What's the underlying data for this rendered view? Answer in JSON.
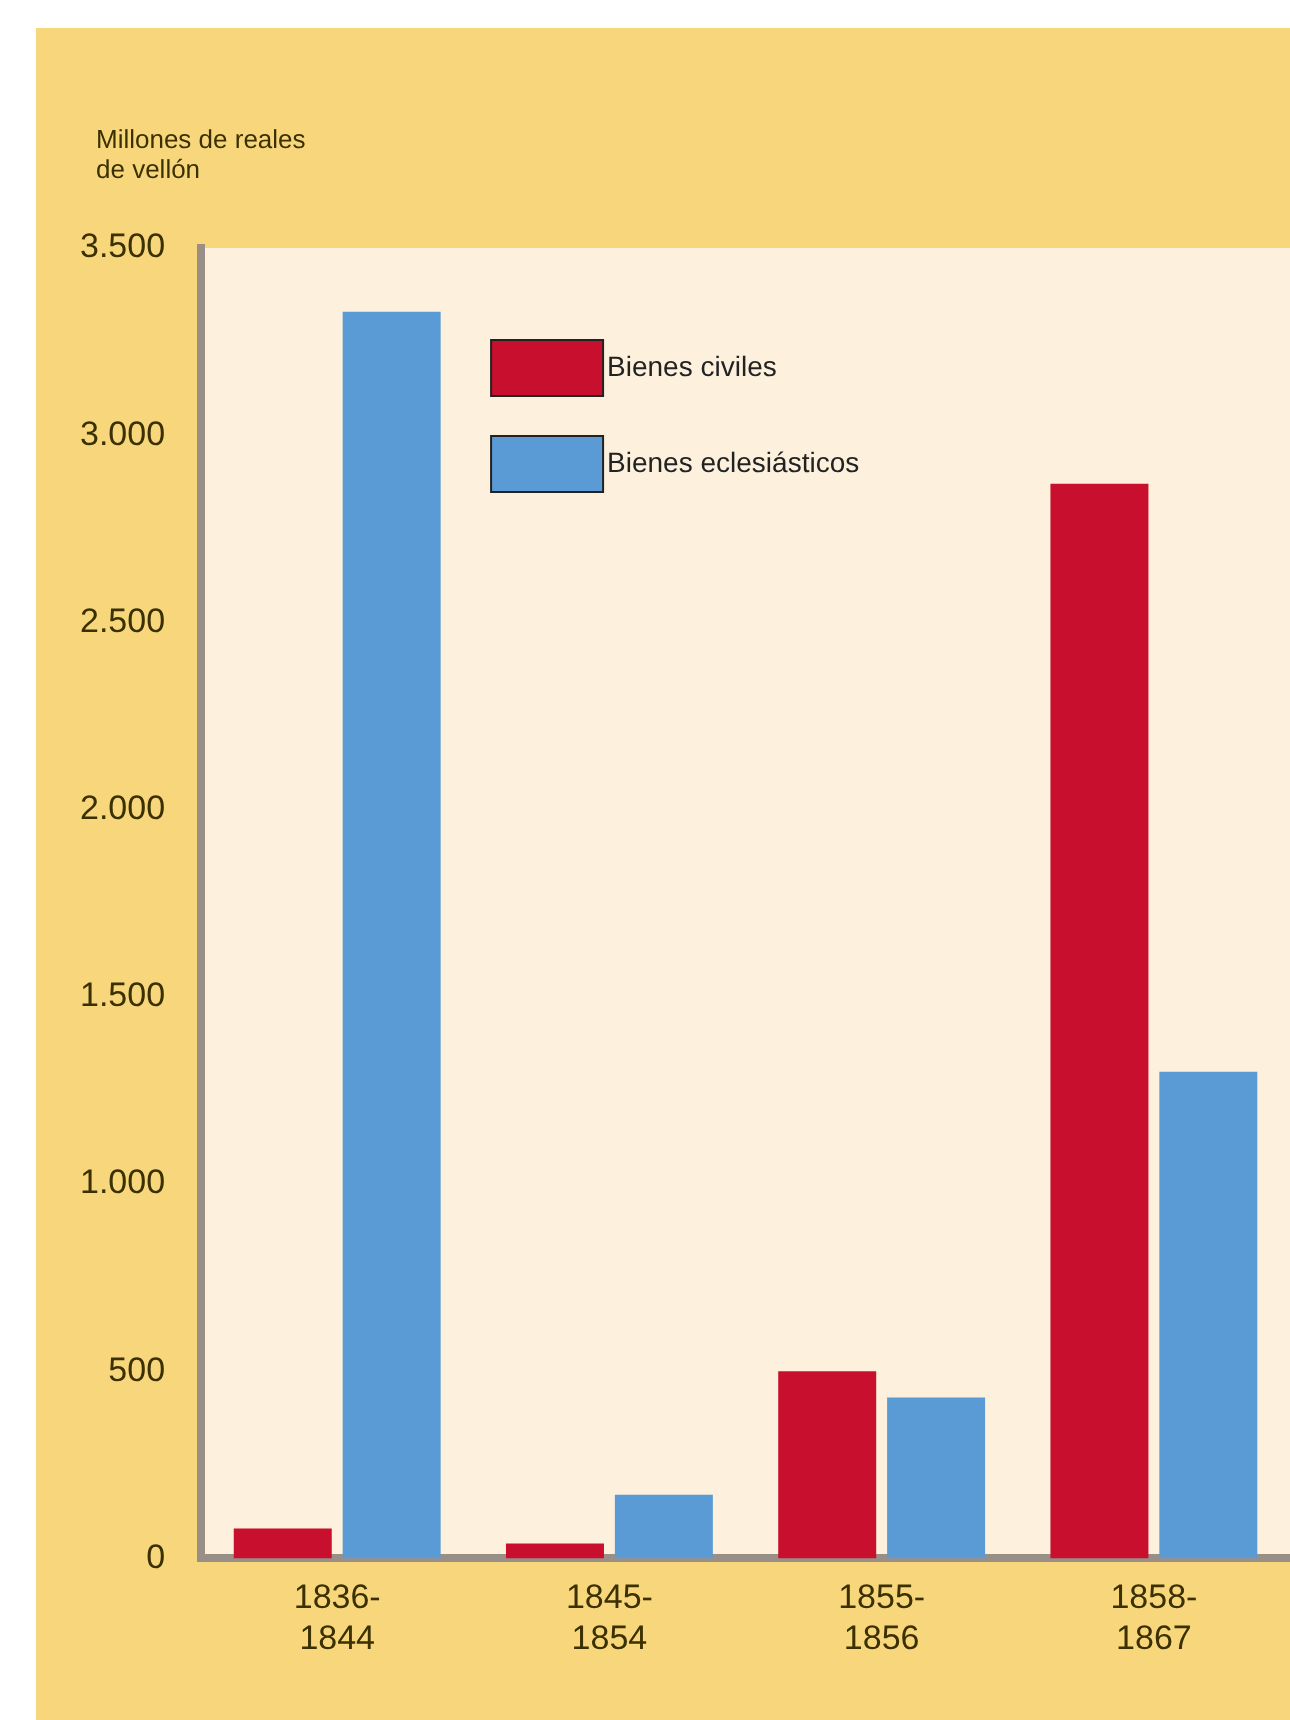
{
  "chart_data": {
    "type": "bar",
    "ylabel": "Millones de reales de vellón",
    "categories": [
      "1836-1844",
      "1845-1854",
      "1855-1856",
      "1858-1867"
    ],
    "series": [
      {
        "name": "Bienes civiles",
        "color": "#c8102e",
        "values": [
          80,
          40,
          500,
          2870
        ]
      },
      {
        "name": "Bienes eclesiásticos",
        "color": "#5b9bd5",
        "values": [
          3330,
          170,
          430,
          1300
        ]
      }
    ],
    "ylim": [
      0,
      3500
    ],
    "yticks": [
      0,
      500,
      {
        "value": 1000,
        "label": "1.000"
      },
      {
        "value": 1500,
        "label": "1.500"
      },
      {
        "value": 2000,
        "label": "2.000"
      },
      {
        "value": 2500,
        "label": "2.500"
      },
      {
        "value": 3000,
        "label": "3.000"
      },
      {
        "value": 3500,
        "label": "3.500"
      }
    ],
    "grid": false,
    "legend": "top left"
  }
}
